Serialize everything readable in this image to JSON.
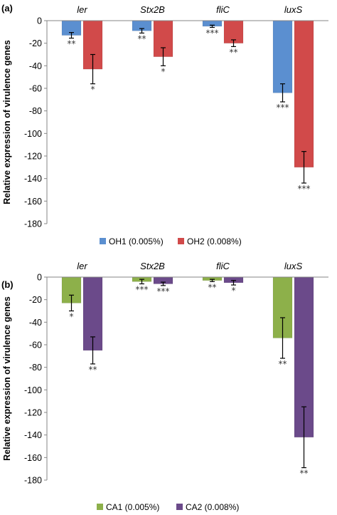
{
  "figure": {
    "ylabel": "Relative expression of virulence genes"
  },
  "chart_data": [
    {
      "type": "bar",
      "panel_label": "(a)",
      "categories": [
        "ler",
        "Stx2B",
        "fliC",
        "luxS"
      ],
      "ylabel": "Relative expression of virulence genes",
      "ylim": [
        -180,
        0
      ],
      "yticks": [
        0,
        -20,
        -40,
        -60,
        -80,
        -100,
        -120,
        -140,
        -160,
        -180
      ],
      "grid": false,
      "legend_position": "bottom",
      "series": [
        {
          "name": "OH1 (0.005%)",
          "color": "#5b8fd0",
          "values": [
            -13,
            -9,
            -5,
            -64
          ],
          "errors": [
            2.5,
            2,
            1,
            8
          ],
          "significance": [
            "**",
            "**",
            "***",
            "***"
          ]
        },
        {
          "name": "OH2 (0.008%)",
          "color": "#d14a4a",
          "values": [
            -43,
            -32,
            -20,
            -130
          ],
          "errors": [
            13,
            8,
            3,
            14
          ],
          "significance": [
            "*",
            "*",
            "**",
            "***"
          ]
        }
      ]
    },
    {
      "type": "bar",
      "panel_label": "(b)",
      "categories": [
        "ler",
        "Stx2B",
        "fliC",
        "luxS"
      ],
      "ylabel": "Relative expression of virulence genes",
      "ylim": [
        -180,
        0
      ],
      "yticks": [
        0,
        -20,
        -40,
        -60,
        -80,
        -100,
        -120,
        -140,
        -160,
        -180
      ],
      "grid": false,
      "legend_position": "bottom",
      "series": [
        {
          "name": "CA1 (0.005%)",
          "color": "#8db04a",
          "values": [
            -23,
            -4,
            -3,
            -54
          ],
          "errors": [
            7,
            2,
            1,
            18
          ],
          "significance": [
            "*",
            "***",
            "**",
            "**"
          ]
        },
        {
          "name": "CA2 (0.008%)",
          "color": "#6b4a8a",
          "values": [
            -65,
            -6,
            -5,
            -142
          ],
          "errors": [
            12,
            1.5,
            2,
            27
          ],
          "significance": [
            "**",
            "***",
            "*",
            "**"
          ]
        }
      ]
    }
  ]
}
